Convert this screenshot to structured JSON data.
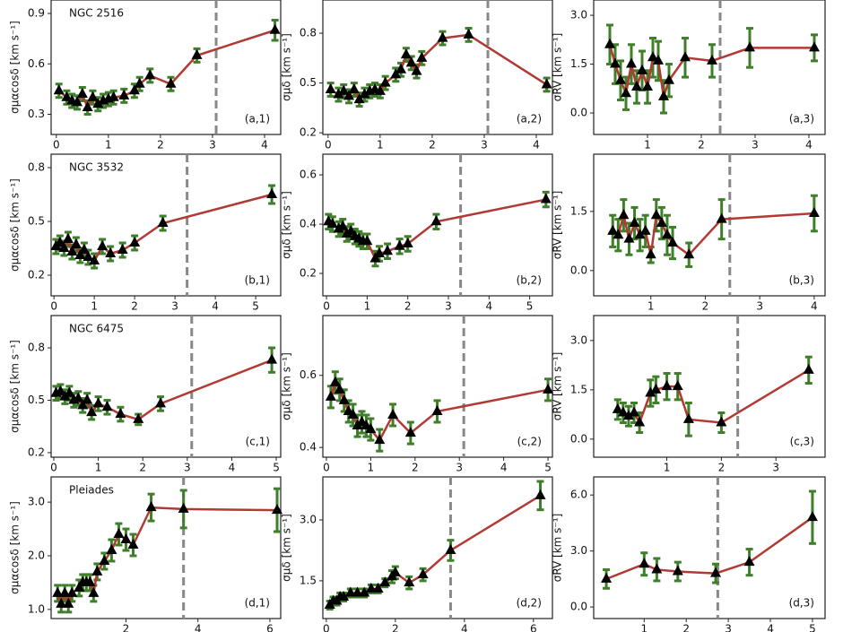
{
  "chart_data": [
    {
      "type": "line",
      "cluster": "NGC 2516",
      "ylabel": "σμαcosδ [km s⁻¹]",
      "panel_label": "(a,1)",
      "x": [
        0.05,
        0.2,
        0.3,
        0.4,
        0.5,
        0.6,
        0.7,
        0.8,
        0.9,
        1.0,
        1.1,
        1.3,
        1.5,
        1.6,
        1.8,
        2.2,
        2.7,
        4.2
      ],
      "series": [
        {
          "color": "#b23a34",
          "error_color": "#3f7f2a",
          "marker_color": "#000000",
          "values": [
            0.44,
            0.4,
            0.38,
            0.37,
            0.42,
            0.34,
            0.4,
            0.36,
            0.38,
            0.39,
            0.4,
            0.41,
            0.44,
            0.48,
            0.53,
            0.48,
            0.65,
            0.8
          ],
          "errors": [
            0.04,
            0.04,
            0.04,
            0.04,
            0.04,
            0.04,
            0.04,
            0.04,
            0.04,
            0.04,
            0.04,
            0.04,
            0.04,
            0.04,
            0.04,
            0.04,
            0.04,
            0.06
          ]
        }
      ],
      "xlim": [
        -0.1,
        4.31
      ],
      "ylim": [
        0.18,
        0.98
      ],
      "xticks": [
        0,
        1,
        2,
        3,
        4
      ],
      "yticks": [
        0.3,
        0.6,
        0.9
      ],
      "vline": 3.07,
      "vline_color": "#888888"
    },
    {
      "type": "line",
      "ylabel": "σμδ [km s⁻¹]",
      "panel_label": "(a,2)",
      "x": [
        0.05,
        0.2,
        0.3,
        0.4,
        0.5,
        0.6,
        0.7,
        0.8,
        0.9,
        1.0,
        1.1,
        1.3,
        1.4,
        1.5,
        1.6,
        1.7,
        1.8,
        2.2,
        2.7,
        4.2
      ],
      "series": [
        {
          "color": "#b23a34",
          "error_color": "#3f7f2a",
          "marker_color": "#000000",
          "values": [
            0.46,
            0.43,
            0.45,
            0.42,
            0.46,
            0.4,
            0.43,
            0.45,
            0.46,
            0.45,
            0.5,
            0.55,
            0.58,
            0.67,
            0.62,
            0.57,
            0.65,
            0.77,
            0.79,
            0.49
          ],
          "errors": [
            0.04,
            0.04,
            0.04,
            0.04,
            0.04,
            0.04,
            0.04,
            0.04,
            0.04,
            0.04,
            0.04,
            0.04,
            0.04,
            0.04,
            0.04,
            0.04,
            0.04,
            0.04,
            0.04,
            0.04
          ]
        }
      ],
      "xlim": [
        -0.1,
        4.31
      ],
      "ylim": [
        0.19,
        1.0
      ],
      "xticks": [
        0,
        1,
        2,
        3,
        4
      ],
      "yticks": [
        0.2,
        0.5,
        0.8
      ],
      "vline": 3.07,
      "vline_color": "#888888"
    },
    {
      "type": "line",
      "ylabel": "σRV [km s⁻¹]",
      "panel_label": "(a,3)",
      "x": [
        0.3,
        0.4,
        0.5,
        0.6,
        0.7,
        0.8,
        0.9,
        1.0,
        1.1,
        1.2,
        1.3,
        1.4,
        1.7,
        2.2,
        2.9,
        4.1
      ],
      "series": [
        {
          "color": "#b23a34",
          "error_color": "#3f7f2a",
          "marker_color": "#000000",
          "values": [
            2.1,
            1.5,
            1.0,
            0.6,
            1.5,
            0.8,
            1.3,
            0.8,
            1.7,
            1.6,
            0.5,
            1.0,
            1.7,
            1.6,
            2.0,
            2.0
          ],
          "errors": [
            0.6,
            0.6,
            0.6,
            0.5,
            0.6,
            0.5,
            0.6,
            0.5,
            0.6,
            0.6,
            0.5,
            0.5,
            0.6,
            0.5,
            0.6,
            0.4
          ]
        }
      ],
      "xlim": [
        0,
        4.3
      ],
      "ylim": [
        -0.66,
        3.47
      ],
      "xticks": [
        1,
        2,
        3,
        4
      ],
      "yticks": [
        {
          "value": 0,
          "label": "0.0"
        },
        1.5,
        {
          "value": 3,
          "label": "3.0"
        }
      ],
      "vline": 2.35,
      "vline_color": "#888888"
    },
    {
      "type": "line",
      "cluster": "NGC 3532",
      "ylabel": "σμαcosδ [km s⁻¹]",
      "panel_label": "(b,1)",
      "x": [
        0.05,
        0.15,
        0.25,
        0.35,
        0.45,
        0.55,
        0.65,
        0.75,
        0.85,
        1.0,
        1.2,
        1.4,
        1.7,
        2.0,
        2.7,
        5.4
      ],
      "series": [
        {
          "color": "#b23a34",
          "error_color": "#3f7f2a",
          "marker_color": "#000000",
          "values": [
            0.36,
            0.38,
            0.35,
            0.4,
            0.33,
            0.37,
            0.31,
            0.34,
            0.3,
            0.28,
            0.36,
            0.32,
            0.34,
            0.38,
            0.49,
            0.65
          ],
          "errors": [
            0.04,
            0.04,
            0.04,
            0.04,
            0.04,
            0.04,
            0.04,
            0.04,
            0.04,
            0.04,
            0.04,
            0.04,
            0.04,
            0.04,
            0.04,
            0.05
          ]
        }
      ],
      "xlim": [
        -0.07,
        5.62
      ],
      "ylim": [
        0.085,
        0.875
      ],
      "xticks": [
        0,
        1,
        2,
        3,
        4,
        5
      ],
      "yticks": [
        0.2,
        0.5,
        0.8
      ],
      "vline": 3.3,
      "vline_color": "#888888"
    },
    {
      "type": "line",
      "ylabel": "σμδ [km s⁻¹]",
      "panel_label": "(b,2)",
      "x": [
        0.05,
        0.15,
        0.3,
        0.4,
        0.5,
        0.6,
        0.7,
        0.8,
        0.9,
        1.0,
        1.2,
        1.3,
        1.5,
        1.8,
        2.0,
        2.7,
        5.4
      ],
      "series": [
        {
          "color": "#b23a34",
          "error_color": "#3f7f2a",
          "marker_color": "#000000",
          "values": [
            0.41,
            0.4,
            0.38,
            0.39,
            0.36,
            0.37,
            0.35,
            0.34,
            0.33,
            0.33,
            0.26,
            0.28,
            0.29,
            0.31,
            0.32,
            0.41,
            0.5
          ],
          "errors": [
            0.03,
            0.03,
            0.03,
            0.03,
            0.03,
            0.03,
            0.03,
            0.03,
            0.03,
            0.03,
            0.03,
            0.03,
            0.03,
            0.03,
            0.03,
            0.03,
            0.03
          ]
        }
      ],
      "xlim": [
        -0.09,
        5.56
      ],
      "ylim": [
        0.109,
        0.684
      ],
      "xticks": [
        0,
        1,
        2,
        3,
        4,
        5
      ],
      "yticks": [
        0.2,
        0.4,
        0.6
      ],
      "vline": 3.3,
      "vline_color": "#888888"
    },
    {
      "type": "line",
      "ylabel": "σRV [km s⁻¹]",
      "panel_label": "(b,3)",
      "x": [
        0.3,
        0.4,
        0.5,
        0.6,
        0.7,
        0.8,
        0.9,
        1.0,
        1.1,
        1.2,
        1.3,
        1.4,
        1.7,
        2.3,
        4.0
      ],
      "series": [
        {
          "color": "#b23a34",
          "error_color": "#3f7f2a",
          "marker_color": "#000000",
          "values": [
            1.0,
            0.9,
            1.4,
            0.8,
            1.2,
            0.9,
            1.0,
            0.4,
            1.4,
            1.2,
            0.9,
            0.7,
            0.4,
            1.3,
            1.45
          ],
          "errors": [
            0.4,
            0.4,
            0.4,
            0.4,
            0.4,
            0.4,
            0.4,
            0.2,
            0.4,
            0.4,
            0.5,
            0.4,
            0.3,
            0.5,
            0.45
          ]
        }
      ],
      "xlim": [
        -0.05,
        4.2
      ],
      "ylim": [
        -0.64,
        2.95
      ],
      "xticks": [
        1,
        2,
        3,
        4
      ],
      "yticks": [
        {
          "value": 0,
          "label": "0.0"
        },
        1.5
      ],
      "vline": 2.45,
      "vline_color": "#888888"
    },
    {
      "type": "line",
      "cluster": "NGC 6475",
      "ylabel": "σμαcosδ [km s⁻¹]",
      "panel_label": "(c,1)",
      "x": [
        0.05,
        0.15,
        0.25,
        0.35,
        0.45,
        0.55,
        0.65,
        0.75,
        0.85,
        1.0,
        1.2,
        1.5,
        1.9,
        2.4,
        4.9
      ],
      "series": [
        {
          "color": "#b23a34",
          "error_color": "#3f7f2a",
          "marker_color": "#000000",
          "values": [
            0.54,
            0.55,
            0.52,
            0.54,
            0.5,
            0.51,
            0.47,
            0.5,
            0.43,
            0.48,
            0.46,
            0.42,
            0.39,
            0.48,
            0.73
          ],
          "errors": [
            0.04,
            0.04,
            0.04,
            0.04,
            0.04,
            0.04,
            0.04,
            0.04,
            0.04,
            0.04,
            0.04,
            0.04,
            0.03,
            0.04,
            0.07
          ]
        }
      ],
      "xlim": [
        -0.06,
        5.1
      ],
      "ylim": [
        0.174,
        0.985
      ],
      "xticks": [
        0,
        1,
        2,
        3,
        4,
        5
      ],
      "yticks": [
        0.2,
        0.5,
        0.8
      ],
      "vline": 3.1,
      "vline_color": "#888888"
    },
    {
      "type": "line",
      "ylabel": "σμδ [km s⁻¹]",
      "panel_label": "(c,2)",
      "x": [
        0.1,
        0.2,
        0.3,
        0.4,
        0.5,
        0.6,
        0.7,
        0.8,
        0.9,
        1.0,
        1.2,
        1.5,
        1.9,
        2.5,
        5.0
      ],
      "series": [
        {
          "color": "#b23a34",
          "error_color": "#3f7f2a",
          "marker_color": "#000000",
          "values": [
            0.54,
            0.58,
            0.56,
            0.53,
            0.5,
            0.49,
            0.46,
            0.47,
            0.46,
            0.45,
            0.42,
            0.49,
            0.44,
            0.5,
            0.56
          ],
          "errors": [
            0.03,
            0.03,
            0.03,
            0.03,
            0.03,
            0.03,
            0.03,
            0.03,
            0.03,
            0.03,
            0.03,
            0.03,
            0.03,
            0.03,
            0.03
          ]
        }
      ],
      "xlim": [
        -0.08,
        5.1
      ],
      "ylim": [
        0.373,
        0.766
      ],
      "xticks": [
        0,
        1,
        2,
        3,
        4,
        5
      ],
      "yticks": [
        0.4,
        0.6
      ],
      "vline": 3.1,
      "vline_color": "#888888"
    },
    {
      "type": "line",
      "ylabel": "σRV [km s⁻¹]",
      "panel_label": "(c,3)",
      "x": [
        0.1,
        0.2,
        0.3,
        0.4,
        0.5,
        0.7,
        0.8,
        1.0,
        1.2,
        1.4,
        2.0,
        3.6
      ],
      "series": [
        {
          "color": "#b23a34",
          "error_color": "#3f7f2a",
          "marker_color": "#000000",
          "values": [
            0.9,
            0.8,
            0.7,
            0.8,
            0.5,
            1.4,
            1.5,
            1.6,
            1.6,
            0.6,
            0.5,
            2.1
          ],
          "errors": [
            0.3,
            0.3,
            0.3,
            0.3,
            0.3,
            0.4,
            0.4,
            0.4,
            0.4,
            0.5,
            0.3,
            0.4
          ]
        }
      ],
      "xlim": [
        -0.34,
        3.9
      ],
      "ylim": [
        -0.55,
        3.76
      ],
      "xticks": [
        1,
        2,
        3
      ],
      "yticks": [
        {
          "value": 0,
          "label": "0.0"
        },
        1.5,
        {
          "value": 3,
          "label": "3.0"
        }
      ],
      "vline": 2.3,
      "vline_color": "#888888"
    },
    {
      "type": "line",
      "cluster": "Pleiades",
      "ylabel": "σμαcosδ [km s⁻¹]",
      "panel_label": "(d,1)",
      "x": [
        0.1,
        0.2,
        0.3,
        0.4,
        0.5,
        0.7,
        0.8,
        0.9,
        1.0,
        1.1,
        1.2,
        1.4,
        1.6,
        1.8,
        2.0,
        2.2,
        2.7,
        3.6,
        6.2
      ],
      "series": [
        {
          "color": "#b23a34",
          "error_color": "#3f7f2a",
          "marker_color": "#000000",
          "values": [
            1.3,
            1.1,
            1.3,
            1.1,
            1.3,
            1.4,
            1.5,
            1.5,
            1.5,
            1.3,
            1.7,
            1.9,
            2.1,
            2.4,
            2.3,
            2.2,
            2.9,
            2.87,
            2.85
          ],
          "errors": [
            0.15,
            0.15,
            0.15,
            0.15,
            0.15,
            0.15,
            0.15,
            0.15,
            0.15,
            0.15,
            0.15,
            0.15,
            0.2,
            0.2,
            0.2,
            0.2,
            0.25,
            0.35,
            0.4
          ]
        }
      ],
      "xlim": [
        -0.08,
        6.3
      ],
      "ylim": [
        0.83,
        3.47
      ],
      "xticks": [
        2,
        4,
        6
      ],
      "yticks": [
        {
          "value": 1,
          "label": "1.0"
        },
        {
          "value": 2,
          "label": "2.0"
        },
        {
          "value": 3,
          "label": "3.0"
        }
      ],
      "vline": 3.6,
      "vline_color": "#888888"
    },
    {
      "type": "line",
      "ylabel": "σμδ [km s⁻¹]",
      "panel_label": "(d,2)",
      "x": [
        0.1,
        0.2,
        0.3,
        0.4,
        0.5,
        0.7,
        0.9,
        1.1,
        1.3,
        1.5,
        1.7,
        1.9,
        2.0,
        2.4,
        2.8,
        3.6,
        6.2
      ],
      "series": [
        {
          "color": "#b23a34",
          "error_color": "#3f7f2a",
          "marker_color": "#000000",
          "values": [
            0.9,
            1.0,
            1.0,
            1.1,
            1.1,
            1.2,
            1.2,
            1.2,
            1.3,
            1.3,
            1.45,
            1.6,
            1.7,
            1.45,
            1.65,
            2.25,
            3.6
          ],
          "errors": [
            0.1,
            0.1,
            0.1,
            0.1,
            0.1,
            0.1,
            0.1,
            0.1,
            0.1,
            0.1,
            0.1,
            0.15,
            0.15,
            0.15,
            0.15,
            0.25,
            0.35
          ]
        }
      ],
      "xlim": [
        -0.1,
        6.55
      ],
      "ylim": [
        0.57,
        4.06
      ],
      "xticks": [
        0,
        2,
        4,
        6
      ],
      "yticks": [
        1.5,
        {
          "value": 3,
          "label": "3.0"
        }
      ],
      "vline": 3.6,
      "vline_color": "#888888"
    },
    {
      "type": "line",
      "ylabel": "σRV [km s⁻¹]",
      "panel_label": "(d,3)",
      "x": [
        0.1,
        1.0,
        1.3,
        1.8,
        2.7,
        3.5,
        5.0
      ],
      "series": [
        {
          "color": "#b23a34",
          "error_color": "#3f7f2a",
          "marker_color": "#000000",
          "values": [
            1.5,
            2.3,
            2.0,
            1.9,
            1.8,
            2.4,
            4.8
          ],
          "errors": [
            0.5,
            0.6,
            0.6,
            0.5,
            0.5,
            0.7,
            1.4
          ]
        }
      ],
      "xlim": [
        -0.2,
        5.3
      ],
      "ylim": [
        -0.62,
        6.97
      ],
      "xticks": [
        1,
        2,
        3,
        4,
        5
      ],
      "yticks": [
        {
          "value": 0,
          "label": "0.0"
        },
        {
          "value": 3,
          "label": "3.0"
        },
        {
          "value": 6,
          "label": "6.0"
        }
      ],
      "vline": 2.75,
      "vline_color": "#888888"
    }
  ]
}
